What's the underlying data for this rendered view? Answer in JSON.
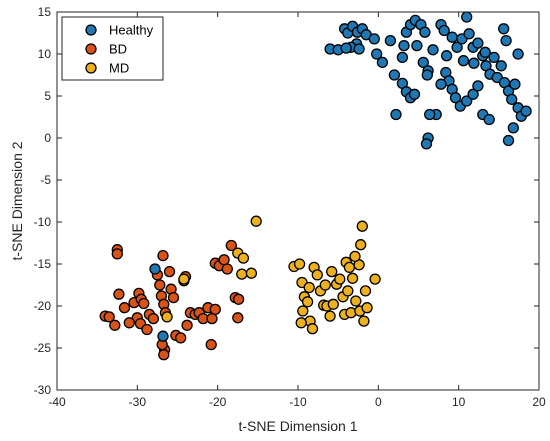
{
  "chart_data": {
    "type": "scatter",
    "title": "",
    "xlabel": "t-SNE Dimension 1",
    "ylabel": "t-SNE Dimension 2",
    "xlim": [
      -40,
      20
    ],
    "ylim": [
      -30,
      15
    ],
    "xticks": [
      -40,
      -30,
      -20,
      -10,
      0,
      10,
      20
    ],
    "yticks": [
      15,
      10,
      5,
      0,
      -5,
      -10,
      -15,
      -20,
      -25,
      -30
    ],
    "xtick_labels": [
      "-40",
      "-30",
      "-20",
      "-10",
      "0",
      "10",
      "20"
    ],
    "ytick_labels": [
      "15",
      "10",
      "5",
      "0",
      "-5",
      "-10",
      "-15",
      "-20",
      "-25",
      "-30"
    ],
    "grid": false,
    "legend_position": "top-left",
    "series": [
      {
        "name": "Healthy",
        "color": "#1F77B4",
        "points": [
          [
            -6,
            10.6
          ],
          [
            -5,
            10.5
          ],
          [
            -4.2,
            13
          ],
          [
            -3.8,
            12.5
          ],
          [
            -3.2,
            13.3
          ],
          [
            -2.6,
            12.6
          ],
          [
            -2,
            13
          ],
          [
            -1.5,
            12.3
          ],
          [
            -2.7,
            11.2
          ],
          [
            -3.4,
            10.8
          ],
          [
            -2.4,
            10.6
          ],
          [
            -4,
            10.7
          ],
          [
            -0.5,
            11.8
          ],
          [
            -0.2,
            10
          ],
          [
            0.5,
            9
          ],
          [
            2,
            7.5
          ],
          [
            3,
            6.5
          ],
          [
            3.5,
            5.5
          ],
          [
            4,
            4.8
          ],
          [
            4.5,
            5.2
          ],
          [
            3.5,
            12.6
          ],
          [
            4,
            13.5
          ],
          [
            4.6,
            14
          ],
          [
            5.3,
            13.5
          ],
          [
            5.8,
            12.6
          ],
          [
            3.2,
            11
          ],
          [
            4.8,
            11
          ],
          [
            6.8,
            10.5
          ],
          [
            7.8,
            13.5
          ],
          [
            8.2,
            12.8
          ],
          [
            9.2,
            12
          ],
          [
            9.8,
            10.8
          ],
          [
            10.4,
            11.8
          ],
          [
            11,
            14.4
          ],
          [
            11.3,
            12.4
          ],
          [
            11.8,
            10.8
          ],
          [
            12.4,
            11.3
          ],
          [
            13,
            9.8
          ],
          [
            13.4,
            8.6
          ],
          [
            13.9,
            7.6
          ],
          [
            14.4,
            9.6
          ],
          [
            14.8,
            7.2
          ],
          [
            15.3,
            8.6
          ],
          [
            15.7,
            6.6
          ],
          [
            16.2,
            5.6
          ],
          [
            16.6,
            4.6
          ],
          [
            17,
            6.4
          ],
          [
            17.4,
            3.6
          ],
          [
            17.8,
            2.6
          ],
          [
            18.4,
            3.2
          ],
          [
            8.4,
            7.8
          ],
          [
            8.8,
            6.8
          ],
          [
            9.2,
            5.8
          ],
          [
            9.6,
            4.8
          ],
          [
            10.2,
            3.8
          ],
          [
            11,
            4.4
          ],
          [
            11.8,
            5.2
          ],
          [
            12.4,
            6.2
          ],
          [
            13,
            2.8
          ],
          [
            13.8,
            2.2
          ],
          [
            7.2,
            2.8
          ],
          [
            6.4,
            2.8
          ],
          [
            6.2,
            0
          ],
          [
            6,
            -0.7
          ],
          [
            5.6,
            9
          ],
          [
            6.2,
            8
          ],
          [
            7.8,
            6.4
          ],
          [
            2.2,
            2.8
          ],
          [
            16.2,
            -0.3
          ],
          [
            16.8,
            1.2
          ],
          [
            17.4,
            10
          ],
          [
            15.9,
            11.6
          ],
          [
            11.9,
            8.9
          ],
          [
            10.6,
            9.2
          ],
          [
            8.5,
            9.8
          ],
          [
            6.1,
            7.5
          ],
          [
            1.5,
            11.6
          ],
          [
            3,
            9.6
          ],
          [
            13.3,
            10.2
          ],
          [
            15.6,
            13
          ]
        ]
      },
      {
        "name": "BD",
        "color": "#D95319",
        "points": [
          [
            -32.5,
            -13.3
          ],
          [
            -32.5,
            -13.8
          ],
          [
            -34,
            -21.2
          ],
          [
            -33.5,
            -21.3
          ],
          [
            -32.8,
            -22.3
          ],
          [
            -32.3,
            -18.6
          ],
          [
            -31.6,
            -20.2
          ],
          [
            -30.4,
            -19.6
          ],
          [
            -29.8,
            -18.5
          ],
          [
            -29.5,
            -19.2
          ],
          [
            -30,
            -21.4
          ],
          [
            -29.6,
            -22.1
          ],
          [
            -29.2,
            -19.7
          ],
          [
            -28.5,
            -21
          ],
          [
            -28.8,
            -22.8
          ],
          [
            -27.5,
            -16.3
          ],
          [
            -27.2,
            -17.5
          ],
          [
            -27,
            -18.8
          ],
          [
            -26.7,
            -19.8
          ],
          [
            -26.5,
            -20.8
          ],
          [
            -26.8,
            -14
          ],
          [
            -26,
            -15.9
          ],
          [
            -25.8,
            -18
          ],
          [
            -25.5,
            -19
          ],
          [
            -26.6,
            -25.2
          ],
          [
            -26.7,
            -25.8
          ],
          [
            -26.9,
            -24.6
          ],
          [
            -25.2,
            -23.5
          ],
          [
            -24.6,
            -23.8
          ],
          [
            -24.2,
            -17
          ],
          [
            -23.8,
            -22.3
          ],
          [
            -23.4,
            -20.8
          ],
          [
            -22.8,
            -21
          ],
          [
            -22.3,
            -20.8
          ],
          [
            -21.8,
            -21.5
          ],
          [
            -21.2,
            -20.2
          ],
          [
            -20.7,
            -21.5
          ],
          [
            -20.3,
            -20.4
          ],
          [
            -20.8,
            -24.6
          ],
          [
            -20.3,
            -14.9
          ],
          [
            -19.8,
            -15.2
          ],
          [
            -19.2,
            -14.5
          ],
          [
            -18.8,
            -15.6
          ],
          [
            -18.3,
            -12.8
          ],
          [
            -17.8,
            -19
          ],
          [
            -17.4,
            -19.2
          ],
          [
            -17.5,
            -21.4
          ],
          [
            -24,
            -16.5
          ],
          [
            -28,
            -21.5
          ],
          [
            -31,
            -22
          ]
        ]
      },
      {
        "name": "MD",
        "color": "#EDB120",
        "points": [
          [
            -26.3,
            -21.3
          ],
          [
            -24.2,
            -16.8
          ],
          [
            -17.5,
            -13.7
          ],
          [
            -17,
            -16.2
          ],
          [
            -15.8,
            -16.1
          ],
          [
            -15.2,
            -9.9
          ],
          [
            -16.8,
            -14.3
          ],
          [
            -10.5,
            -15.3
          ],
          [
            -9.8,
            -15
          ],
          [
            -9.5,
            -17.2
          ],
          [
            -9.2,
            -18.9
          ],
          [
            -8.8,
            -19.5
          ],
          [
            -8.5,
            -21.8
          ],
          [
            -8.2,
            -22.7
          ],
          [
            -9.4,
            -20.6
          ],
          [
            -9.6,
            -22
          ],
          [
            -8,
            -15.4
          ],
          [
            -7.6,
            -16.3
          ],
          [
            -7.2,
            -18.2
          ],
          [
            -6.8,
            -19.9
          ],
          [
            -6.4,
            -20
          ],
          [
            -6,
            -21.2
          ],
          [
            -5.6,
            -19.8
          ],
          [
            -5.2,
            -17.4
          ],
          [
            -4.8,
            -16.8
          ],
          [
            -4.4,
            -18.9
          ],
          [
            -4,
            -14.8
          ],
          [
            -3.6,
            -15.4
          ],
          [
            -3.2,
            -16.7
          ],
          [
            -3.8,
            -18.2
          ],
          [
            -4.2,
            -21
          ],
          [
            -3.4,
            -20.8
          ],
          [
            -2.8,
            -19.4
          ],
          [
            -2.4,
            -15.1
          ],
          [
            -2.2,
            -12.7
          ],
          [
            -2.0,
            -10.5
          ],
          [
            -2.3,
            -20.6
          ],
          [
            -1.8,
            -21.8
          ],
          [
            -1.6,
            -18.2
          ],
          [
            -1.4,
            -20.2
          ],
          [
            -0.4,
            -16.8
          ],
          [
            -2.9,
            -14.1
          ],
          [
            -5.8,
            -15.9
          ],
          [
            -6.6,
            -17.5
          ],
          [
            -8.6,
            -17.8
          ]
        ]
      },
      {
        "name": "Healthy",
        "color": "#1F77B4",
        "points": [
          [
            -27.8,
            -15.6
          ],
          [
            -26.8,
            -23.6
          ]
        ]
      }
    ],
    "legend": [
      {
        "label": "Healthy",
        "color": "#1F77B4"
      },
      {
        "label": "BD",
        "color": "#D95319"
      },
      {
        "label": "MD",
        "color": "#EDB120"
      }
    ]
  }
}
